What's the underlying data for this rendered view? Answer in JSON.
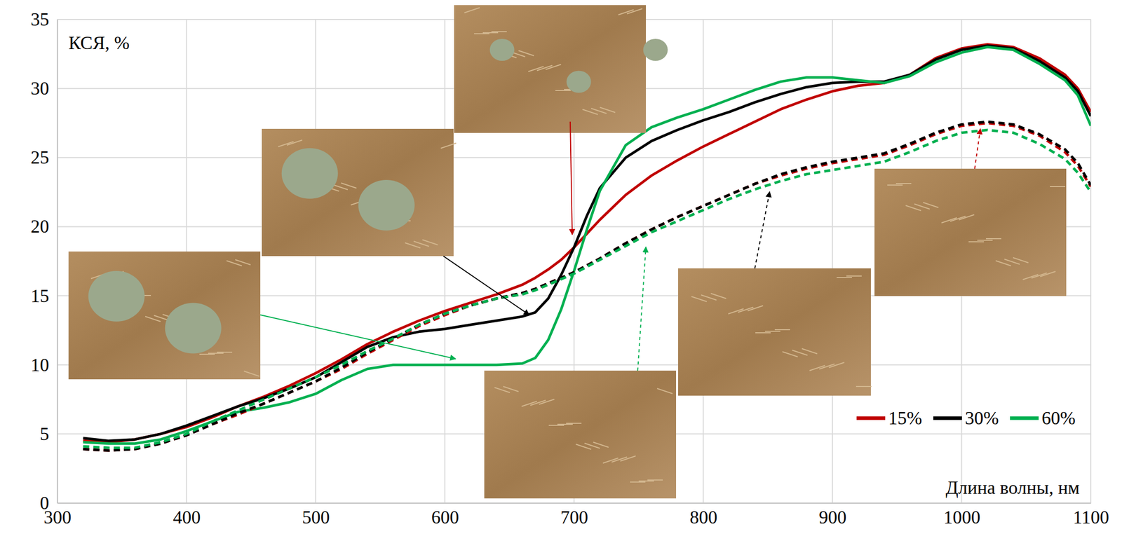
{
  "chart_data": {
    "type": "line",
    "y_label": "КСЯ, %",
    "x_label": "Длина волны, нм",
    "xlim": [
      300,
      1100
    ],
    "xticks": [
      300,
      400,
      500,
      600,
      700,
      800,
      900,
      1000,
      1100
    ],
    "ylim": [
      0,
      35
    ],
    "yticks": [
      0,
      5,
      10,
      15,
      20,
      25,
      30,
      35
    ],
    "grid": true,
    "legend": "lower right",
    "x": [
      320,
      340,
      360,
      380,
      400,
      420,
      440,
      460,
      480,
      500,
      520,
      540,
      560,
      580,
      600,
      620,
      640,
      660,
      670,
      680,
      690,
      700,
      710,
      720,
      740,
      760,
      780,
      800,
      820,
      840,
      860,
      880,
      900,
      920,
      940,
      960,
      980,
      1000,
      1020,
      1040,
      1060,
      1080,
      1090,
      1100
    ],
    "series": [
      {
        "name": "15%",
        "color": "#c00000",
        "line_style": "solid",
        "values": [
          4.5,
          4.4,
          4.6,
          5.0,
          5.5,
          6.2,
          7.0,
          7.7,
          8.5,
          9.4,
          10.4,
          11.5,
          12.4,
          13.2,
          13.9,
          14.5,
          15.1,
          15.8,
          16.3,
          16.9,
          17.6,
          18.5,
          19.5,
          20.5,
          22.3,
          23.7,
          24.8,
          25.8,
          26.7,
          27.6,
          28.5,
          29.2,
          29.8,
          30.2,
          30.4,
          31.0,
          32.2,
          32.9,
          33.2,
          33.0,
          32.2,
          31.0,
          30.0,
          28.3
        ]
      },
      {
        "name": "30%",
        "color": "#000000",
        "line_style": "solid",
        "values": [
          4.7,
          4.5,
          4.6,
          5.0,
          5.6,
          6.3,
          7.0,
          7.6,
          8.3,
          9.1,
          10.2,
          11.3,
          12.0,
          12.4,
          12.6,
          12.9,
          13.2,
          13.5,
          13.8,
          14.8,
          16.5,
          18.5,
          20.8,
          22.8,
          25.0,
          26.2,
          27.0,
          27.7,
          28.3,
          29.0,
          29.6,
          30.1,
          30.4,
          30.5,
          30.5,
          31.0,
          32.1,
          32.8,
          33.1,
          32.9,
          32.0,
          30.8,
          29.8,
          28.0
        ]
      },
      {
        "name": "60%",
        "color": "#00b050",
        "line_style": "solid",
        "values": [
          4.4,
          4.3,
          4.3,
          4.6,
          5.2,
          5.9,
          6.6,
          6.9,
          7.3,
          7.9,
          8.9,
          9.7,
          10.0,
          10.0,
          10.0,
          10.0,
          10.0,
          10.1,
          10.5,
          11.8,
          14.0,
          16.8,
          19.8,
          22.6,
          25.9,
          27.2,
          27.9,
          28.5,
          29.2,
          29.9,
          30.5,
          30.8,
          30.8,
          30.6,
          30.4,
          30.9,
          31.9,
          32.6,
          33.0,
          32.8,
          31.8,
          30.6,
          29.5,
          27.3
        ]
      },
      {
        "color": "#c00000",
        "line_style": "dashed",
        "values": [
          3.9,
          3.8,
          3.9,
          4.3,
          4.9,
          5.7,
          6.4,
          7.2,
          8.0,
          8.8,
          9.7,
          10.8,
          11.8,
          12.8,
          13.6,
          14.3,
          14.8,
          15.2,
          15.5,
          15.9,
          16.3,
          16.7,
          17.2,
          17.7,
          18.8,
          19.8,
          20.7,
          21.5,
          22.3,
          23.1,
          23.7,
          24.2,
          24.6,
          24.9,
          25.2,
          25.9,
          26.7,
          27.3,
          27.5,
          27.3,
          26.6,
          25.4,
          24.4,
          22.9
        ]
      },
      {
        "color": "#000000",
        "line_style": "dashed",
        "values": [
          3.9,
          3.8,
          3.9,
          4.3,
          4.9,
          5.7,
          6.5,
          7.2,
          8.0,
          8.8,
          9.8,
          10.9,
          11.9,
          12.9,
          13.7,
          14.3,
          14.8,
          15.2,
          15.5,
          15.9,
          16.3,
          16.7,
          17.2,
          17.7,
          18.8,
          19.8,
          20.7,
          21.5,
          22.3,
          23.1,
          23.8,
          24.3,
          24.7,
          25.0,
          25.3,
          26.0,
          26.8,
          27.4,
          27.6,
          27.4,
          26.7,
          25.6,
          24.6,
          23.0
        ]
      },
      {
        "color": "#00b050",
        "line_style": "dashed",
        "values": [
          4.1,
          4.0,
          4.0,
          4.4,
          5.0,
          5.9,
          6.7,
          7.5,
          8.3,
          9.1,
          10.0,
          11.0,
          11.9,
          12.9,
          13.7,
          14.3,
          14.8,
          15.1,
          15.4,
          15.8,
          16.2,
          16.6,
          17.1,
          17.6,
          18.6,
          19.6,
          20.4,
          21.2,
          22.0,
          22.7,
          23.3,
          23.8,
          24.1,
          24.4,
          24.7,
          25.4,
          26.2,
          26.8,
          27.0,
          26.8,
          26.0,
          24.9,
          23.9,
          22.5
        ]
      }
    ]
  }
}
